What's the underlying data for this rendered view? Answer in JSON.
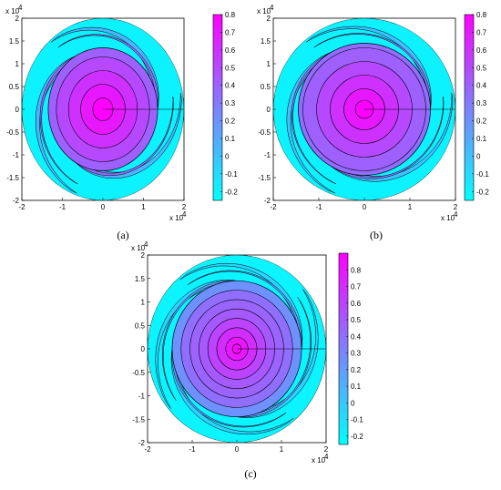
{
  "chart_data": [
    {
      "type": "heatmap",
      "caption": "(a)",
      "xlim": [
        -2.0,
        2.0
      ],
      "ylim": [
        -2.0,
        2.0
      ],
      "x_ticks": [
        "-2",
        "-1",
        "0",
        "1",
        "2"
      ],
      "y_ticks": [
        "-2",
        "-1.5",
        "-1",
        "-0.5",
        "0",
        "0.5",
        "1",
        "1.5",
        "2"
      ],
      "x_multiplier": "x 10",
      "x_multiplier_exp": "4",
      "y_multiplier": "x 10",
      "y_multiplier_exp": "4",
      "colorbar": {
        "ticks": [
          "-0.2",
          "-0.1",
          "0",
          "0.1",
          "0.2",
          "0.3",
          "0.4",
          "0.5",
          "0.6",
          "0.7",
          "0.8"
        ],
        "min": -0.25,
        "max": 0.8,
        "colors": [
          "#00ffff",
          "#ff00ff"
        ]
      },
      "ring_levels": [
        0.8,
        0.7,
        0.6,
        0.5
      ],
      "ring_radii": [
        0.25,
        0.55,
        0.85,
        1.15
      ],
      "spiral_arms": 3,
      "core_radius": 1.35,
      "inner_spiral_value": 0.35,
      "outer_spiral_value": 0.05
    },
    {
      "type": "heatmap",
      "caption": "(b)",
      "xlim": [
        -2.0,
        2.0
      ],
      "ylim": [
        -2.0,
        2.0
      ],
      "x_ticks": [
        "-2",
        "-1",
        "0",
        "1",
        "2"
      ],
      "y_ticks": [
        "-2",
        "-1.5",
        "-1",
        "-0.5",
        "0",
        "0.5",
        "1",
        "1.5",
        "2"
      ],
      "x_multiplier": "x 10",
      "x_multiplier_exp": "4",
      "y_multiplier": "x 10",
      "y_multiplier_exp": "4",
      "colorbar": {
        "ticks": [
          "-0.2",
          "-0.1",
          "0",
          "0.1",
          "0.2",
          "0.3",
          "0.4",
          "0.5",
          "0.6",
          "0.7",
          "0.8"
        ],
        "min": -0.25,
        "max": 0.8,
        "colors": [
          "#00ffff",
          "#ff00ff"
        ]
      },
      "ring_levels": [
        0.8,
        0.7,
        0.6,
        0.5,
        0.4
      ],
      "ring_radii": [
        0.2,
        0.45,
        0.75,
        1.05,
        1.35
      ],
      "spiral_arms": 3,
      "core_radius": 1.45,
      "inner_spiral_value": 0.3,
      "outer_spiral_value": 0.0
    },
    {
      "type": "heatmap",
      "caption": "(c)",
      "xlim": [
        -2.0,
        2.0
      ],
      "ylim": [
        -2.0,
        2.0
      ],
      "x_ticks": [
        "-2",
        "-1",
        "0",
        "1",
        "2"
      ],
      "y_ticks": [
        "-2",
        "-1.5",
        "-1",
        "-0.5",
        "0",
        "0.5",
        "1",
        "1.5",
        "2"
      ],
      "x_multiplier": "x 10",
      "x_multiplier_exp": "4",
      "y_multiplier": "x 10",
      "y_multiplier_exp": "4",
      "colorbar": {
        "ticks": [
          "-0.2",
          "-0.1",
          "0",
          "0.1",
          "0.2",
          "0.3",
          "0.4",
          "0.5",
          "0.6",
          "0.7",
          "0.8"
        ],
        "min": -0.25,
        "max": 0.9,
        "colors": [
          "#00ffff",
          "#ff00ff"
        ]
      },
      "ring_levels": [
        0.85,
        0.8,
        0.7,
        0.6,
        0.5,
        0.45,
        0.4
      ],
      "ring_radii": [
        0.1,
        0.25,
        0.45,
        0.65,
        0.85,
        1.05,
        1.25
      ],
      "spiral_arms": 4,
      "core_radius": 1.45,
      "inner_spiral_value": 0.2,
      "outer_spiral_value": -0.05
    }
  ]
}
